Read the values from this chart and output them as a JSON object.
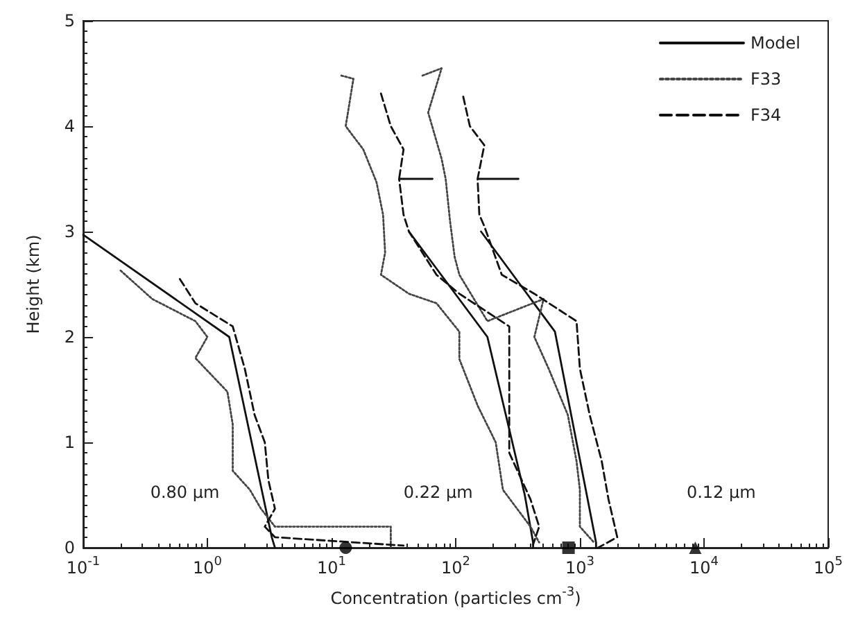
{
  "chart_data": {
    "type": "line",
    "xlabel": "Concentration (particles cm$^{-3}$)",
    "ylabel": "Height (km)",
    "log": "x",
    "xlim": [
      0.1,
      100000
    ],
    "xticks": [
      {
        "value": 0.1,
        "label": "10$^{-1}$"
      },
      {
        "value": 1,
        "label": "10$^{0}$"
      },
      {
        "value": 10,
        "label": "10$^{1}$"
      },
      {
        "value": 100,
        "label": "10$^{2}$"
      },
      {
        "value": 1000,
        "label": "10$^{3}$"
      },
      {
        "value": 10000,
        "label": "10$^{4}$"
      },
      {
        "value": 100000,
        "label": "10$^{5}$"
      }
    ],
    "ylim": [
      0,
      5
    ],
    "yticks": [
      0,
      1,
      2,
      3,
      4,
      5
    ],
    "grid": false,
    "legend": "top right",
    "marker": "none",
    "annotations": [
      "0.80 µm",
      "0.22 µm",
      "0.12 µm"
    ],
    "series": [
      {
        "name": "Model",
        "color": "#111111",
        "line_style": "solid",
        "x": [
          0.1,
          1.5,
          3.3,
          3.5,
          null,
          42,
          180,
          360,
          420,
          420,
          null,
          160,
          630,
          1350,
          1350
        ],
        "values": [
          2.97,
          2.0,
          0.1,
          0.0,
          null,
          3.0,
          2.0,
          0.5,
          0.05,
          0.0,
          null,
          3.0,
          2.05,
          0.05,
          0.0
        ]
      },
      {
        "name": "F33",
        "color": "#444444",
        "line_style": "dotted",
        "x": [
          0.2,
          0.36,
          0.8,
          1.0,
          0.8,
          1.45,
          1.6,
          1.6,
          2.2,
          2.7,
          3.5,
          30,
          30,
          null,
          12,
          15,
          13,
          18,
          23,
          26,
          27,
          25,
          42,
          70,
          107,
          107,
          150,
          210,
          240,
          400,
          470,
          null,
          54,
          77,
          60,
          77,
          83,
          90,
          98,
          107,
          180,
          510,
          430,
          560,
          800,
          940,
          1000,
          1000,
          1300
        ],
        "values": [
          2.63,
          2.36,
          2.15,
          2.0,
          1.8,
          1.48,
          1.17,
          0.73,
          0.55,
          0.37,
          0.2,
          0.2,
          0.0,
          null,
          4.48,
          4.45,
          4.0,
          3.78,
          3.47,
          3.16,
          2.8,
          2.59,
          2.41,
          2.32,
          2.05,
          1.79,
          1.35,
          1.0,
          0.55,
          0.2,
          0.05,
          null,
          4.48,
          4.55,
          4.13,
          3.69,
          3.5,
          3.1,
          2.76,
          2.59,
          2.15,
          2.36,
          2.0,
          1.7,
          1.26,
          0.82,
          0.55,
          0.2,
          0.05
        ]
      },
      {
        "name": "F34",
        "color": "#111111",
        "line_style": "dashed",
        "x": [
          0.6,
          0.8,
          1.6,
          2.0,
          2.4,
          2.9,
          3.1,
          3.5,
          2.9,
          3.5,
          38,
          null,
          25,
          30,
          38,
          35,
          65,
          35,
          38,
          42,
          70,
          107,
          270,
          270,
          400,
          470,
          420,
          null,
          115,
          130,
          170,
          150,
          320,
          150,
          155,
          170,
          235,
          430,
          940,
          1000,
          1200,
          1500,
          1700,
          2000,
          1400
        ],
        "values": [
          2.55,
          2.32,
          2.1,
          1.7,
          1.26,
          1.0,
          0.64,
          0.37,
          0.2,
          0.1,
          0.02,
          null,
          4.31,
          4.0,
          3.78,
          3.5,
          3.5,
          3.5,
          3.16,
          3.0,
          2.59,
          2.41,
          2.1,
          0.9,
          0.46,
          0.2,
          0.03,
          null,
          4.28,
          4.0,
          3.82,
          3.5,
          3.5,
          3.5,
          3.16,
          3.05,
          2.59,
          2.41,
          2.15,
          1.7,
          1.26,
          0.82,
          0.46,
          0.1,
          0.0
        ]
      },
      {
        "type": "scatter",
        "color": "#000000",
        "marker": "circle",
        "x": [
          13
        ],
        "values": [
          0
        ]
      },
      {
        "type": "scatter",
        "color": "#000000",
        "marker": "square",
        "x": [
          810
        ],
        "values": [
          0
        ]
      },
      {
        "type": "scatter",
        "color": "#000000",
        "marker": "triangle",
        "x": [
          8500
        ],
        "values": [
          0
        ]
      }
    ]
  }
}
